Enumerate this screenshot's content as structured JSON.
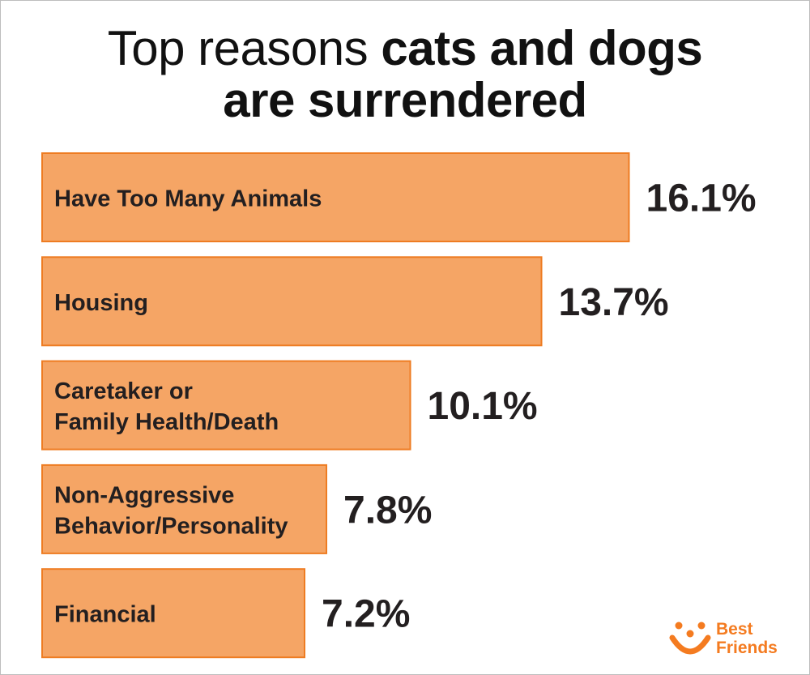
{
  "title": {
    "part1": "Top reasons ",
    "part2": "cats and dogs",
    "part3": "are surrendered"
  },
  "chart_data": {
    "type": "bar",
    "orientation": "horizontal",
    "categories": [
      [
        "Have Too Many Animals"
      ],
      [
        "Housing"
      ],
      [
        "Caretaker or",
        "Family Health/Death"
      ],
      [
        "Non-Aggressive",
        "Behavior/Personality"
      ],
      [
        "Financial"
      ]
    ],
    "values": [
      16.1,
      13.7,
      10.1,
      7.8,
      7.2
    ],
    "value_labels": [
      "16.1%",
      "13.7%",
      "10.1%",
      "7.8%",
      "7.2%"
    ],
    "bar_fill": "#f5a565",
    "bar_stroke": "#ee7c22",
    "grid": false
  },
  "logo": {
    "line1": "Best",
    "line2": "Friends",
    "color": "#f47b20",
    "icon": "smiling-dog-face-icon"
  }
}
